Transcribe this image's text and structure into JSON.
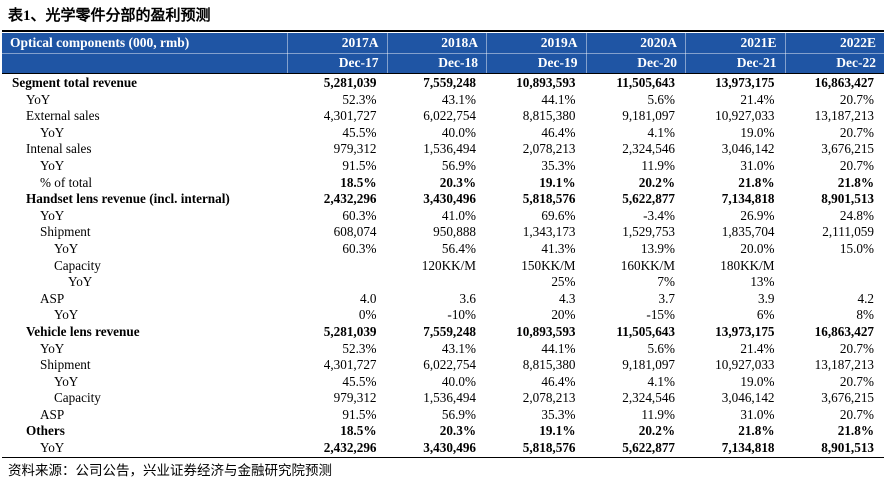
{
  "title": "表1、光学零件分部的盈利预测",
  "source": "资料来源：公司公告，兴业证券经济与金融研究院预测",
  "colors": {
    "header_bg": "#1F55A4",
    "header_text": "#FFFFFF",
    "body_text": "#000000",
    "rule": "#000000"
  },
  "table": {
    "header": {
      "label": "Optical components (000, rmb)",
      "columns": [
        {
          "year": "2017A",
          "date": "Dec-17"
        },
        {
          "year": "2018A",
          "date": "Dec-18"
        },
        {
          "year": "2019A",
          "date": "Dec-19"
        },
        {
          "year": "2020A",
          "date": "Dec-20"
        },
        {
          "year": "2021E",
          "date": "Dec-21"
        },
        {
          "year": "2022E",
          "date": "Dec-22"
        }
      ]
    },
    "rows": [
      {
        "label": "Segment total revenue",
        "indent": 0,
        "bold_label": true,
        "bold_values": true,
        "values": [
          "5,281,039",
          "7,559,248",
          "10,893,593",
          "11,505,643",
          "13,973,175",
          "16,863,427"
        ]
      },
      {
        "label": "YoY",
        "indent": 1,
        "bold_label": false,
        "bold_values": false,
        "values": [
          "52.3%",
          "43.1%",
          "44.1%",
          "5.6%",
          "21.4%",
          "20.7%"
        ]
      },
      {
        "label": "External sales",
        "indent": 1,
        "bold_label": false,
        "bold_values": false,
        "values": [
          "4,301,727",
          "6,022,754",
          "8,815,380",
          "9,181,097",
          "10,927,033",
          "13,187,213"
        ]
      },
      {
        "label": "YoY",
        "indent": 2,
        "bold_label": false,
        "bold_values": false,
        "values": [
          "45.5%",
          "40.0%",
          "46.4%",
          "4.1%",
          "19.0%",
          "20.7%"
        ]
      },
      {
        "label": "Intenal sales",
        "indent": 1,
        "bold_label": false,
        "bold_values": false,
        "values": [
          "979,312",
          "1,536,494",
          "2,078,213",
          "2,324,546",
          "3,046,142",
          "3,676,215"
        ]
      },
      {
        "label": "YoY",
        "indent": 2,
        "bold_label": false,
        "bold_values": false,
        "values": [
          "91.5%",
          "56.9%",
          "35.3%",
          "11.9%",
          "31.0%",
          "20.7%"
        ]
      },
      {
        "label": "% of total",
        "indent": 2,
        "bold_label": false,
        "bold_values": true,
        "values": [
          "18.5%",
          "20.3%",
          "19.1%",
          "20.2%",
          "21.8%",
          "21.8%"
        ]
      },
      {
        "label": "Handset lens revenue (incl. internal)",
        "indent": 1,
        "bold_label": true,
        "bold_values": true,
        "values": [
          "2,432,296",
          "3,430,496",
          "5,818,576",
          "5,622,877",
          "7,134,818",
          "8,901,513"
        ]
      },
      {
        "label": "YoY",
        "indent": 2,
        "bold_label": false,
        "bold_values": false,
        "values": [
          "60.3%",
          "41.0%",
          "69.6%",
          "-3.4%",
          "26.9%",
          "24.8%"
        ]
      },
      {
        "label": "Shipment",
        "indent": 2,
        "bold_label": false,
        "bold_values": false,
        "values": [
          "608,074",
          "950,888",
          "1,343,173",
          "1,529,753",
          "1,835,704",
          "2,111,059"
        ]
      },
      {
        "label": "YoY",
        "indent": 3,
        "bold_label": false,
        "bold_values": false,
        "values": [
          "60.3%",
          "56.4%",
          "41.3%",
          "13.9%",
          "20.0%",
          "15.0%"
        ]
      },
      {
        "label": "Capacity",
        "indent": 3,
        "bold_label": false,
        "bold_values": false,
        "values": [
          "",
          "120KK/M",
          "150KK/M",
          "160KK/M",
          "180KK/M",
          ""
        ]
      },
      {
        "label": "YoY",
        "indent": 4,
        "bold_label": false,
        "bold_values": false,
        "values": [
          "",
          "",
          "25%",
          "7%",
          "13%",
          ""
        ]
      },
      {
        "label": "ASP",
        "indent": 2,
        "bold_label": false,
        "bold_values": false,
        "values": [
          "4.0",
          "3.6",
          "4.3",
          "3.7",
          "3.9",
          "4.2"
        ]
      },
      {
        "label": "YoY",
        "indent": 3,
        "bold_label": false,
        "bold_values": false,
        "values": [
          "0%",
          "-10%",
          "20%",
          "-15%",
          "6%",
          "8%"
        ]
      },
      {
        "label": "Vehicle lens revenue",
        "indent": 1,
        "bold_label": true,
        "bold_values": true,
        "values": [
          "5,281,039",
          "7,559,248",
          "10,893,593",
          "11,505,643",
          "13,973,175",
          "16,863,427"
        ]
      },
      {
        "label": "YoY",
        "indent": 2,
        "bold_label": false,
        "bold_values": false,
        "values": [
          "52.3%",
          "43.1%",
          "44.1%",
          "5.6%",
          "21.4%",
          "20.7%"
        ]
      },
      {
        "label": "Shipment",
        "indent": 2,
        "bold_label": false,
        "bold_values": false,
        "values": [
          "4,301,727",
          "6,022,754",
          "8,815,380",
          "9,181,097",
          "10,927,033",
          "13,187,213"
        ]
      },
      {
        "label": "YoY",
        "indent": 3,
        "bold_label": false,
        "bold_values": false,
        "values": [
          "45.5%",
          "40.0%",
          "46.4%",
          "4.1%",
          "19.0%",
          "20.7%"
        ]
      },
      {
        "label": "Capacity",
        "indent": 3,
        "bold_label": false,
        "bold_values": false,
        "values": [
          "979,312",
          "1,536,494",
          "2,078,213",
          "2,324,546",
          "3,046,142",
          "3,676,215"
        ]
      },
      {
        "label": "ASP",
        "indent": 2,
        "bold_label": false,
        "bold_values": false,
        "values": [
          "91.5%",
          "56.9%",
          "35.3%",
          "11.9%",
          "31.0%",
          "20.7%"
        ]
      },
      {
        "label": "Others",
        "indent": 1,
        "bold_label": true,
        "bold_values": true,
        "values": [
          "18.5%",
          "20.3%",
          "19.1%",
          "20.2%",
          "21.8%",
          "21.8%"
        ]
      },
      {
        "label": "YoY",
        "indent": 2,
        "bold_label": false,
        "bold_values": true,
        "values": [
          "2,432,296",
          "3,430,496",
          "5,818,576",
          "5,622,877",
          "7,134,818",
          "8,901,513"
        ]
      }
    ]
  }
}
